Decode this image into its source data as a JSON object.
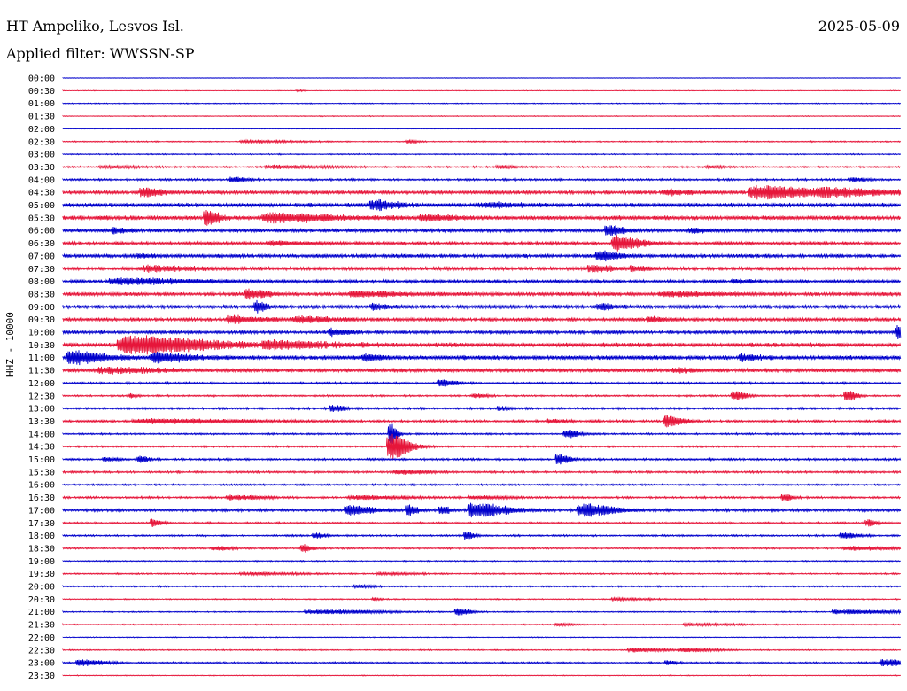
{
  "header": {
    "station": "HT Ampeliko, Lesvos Isl.",
    "date": "2025-05-09",
    "filter": "Applied filter: WWSSN-SP"
  },
  "channel_label": "HHZ - 10000",
  "colors": {
    "odd_trace": "#0000cc",
    "even_trace": "#e6163a",
    "text": "#000000"
  },
  "chart_data": {
    "type": "line",
    "title": "HT Ampeliko, Lesvos Isl.",
    "date": "2025-05-09",
    "filter": "WWSSN-SP",
    "ylabel": "HHZ - 10000",
    "row_interval_minutes": 30,
    "grid": false,
    "legend": "none",
    "rows": [
      {
        "time": "00:00",
        "activity": 0.1,
        "events": []
      },
      {
        "time": "00:30",
        "activity": 0.1,
        "events": [
          {
            "pos": 0.28,
            "amp": 0.2,
            "width": 0.004
          }
        ]
      },
      {
        "time": "01:00",
        "activity": 0.15,
        "events": []
      },
      {
        "time": "01:30",
        "activity": 0.15,
        "events": []
      },
      {
        "time": "02:00",
        "activity": 0.1,
        "events": []
      },
      {
        "time": "02:30",
        "activity": 0.2,
        "events": [
          {
            "pos": 0.22,
            "amp": 0.3,
            "width": 0.03
          },
          {
            "pos": 0.41,
            "amp": 0.5,
            "width": 0.006
          }
        ]
      },
      {
        "time": "03:00",
        "activity": 0.2,
        "events": []
      },
      {
        "time": "03:30",
        "activity": 0.3,
        "events": [
          {
            "pos": 0.05,
            "amp": 0.3,
            "width": 0.02
          },
          {
            "pos": 0.25,
            "amp": 0.5,
            "width": 0.03
          },
          {
            "pos": 0.52,
            "amp": 0.4,
            "width": 0.01
          },
          {
            "pos": 0.77,
            "amp": 0.3,
            "width": 0.01
          }
        ]
      },
      {
        "time": "04:00",
        "activity": 0.35,
        "events": [
          {
            "pos": 0.2,
            "amp": 0.8,
            "width": 0.008
          },
          {
            "pos": 0.94,
            "amp": 0.5,
            "width": 0.01
          }
        ]
      },
      {
        "time": "04:30",
        "activity": 0.6,
        "events": [
          {
            "pos": 0.095,
            "amp": 1.3,
            "width": 0.012
          },
          {
            "pos": 0.72,
            "amp": 0.7,
            "width": 0.015
          },
          {
            "pos": 0.83,
            "amp": 1.8,
            "width": 0.04
          },
          {
            "pos": 0.92,
            "amp": 0.6,
            "width": 0.06
          }
        ]
      },
      {
        "time": "05:00",
        "activity": 0.75,
        "events": [
          {
            "pos": 0.37,
            "amp": 1.2,
            "width": 0.015
          },
          {
            "pos": 0.5,
            "amp": 0.6,
            "width": 0.02
          }
        ]
      },
      {
        "time": "05:30",
        "activity": 0.75,
        "events": [
          {
            "pos": 0.17,
            "amp": 2.4,
            "width": 0.008
          },
          {
            "pos": 0.25,
            "amp": 1.2,
            "width": 0.04
          },
          {
            "pos": 0.43,
            "amp": 0.7,
            "width": 0.02
          }
        ]
      },
      {
        "time": "06:00",
        "activity": 0.6,
        "events": [
          {
            "pos": 0.06,
            "amp": 0.8,
            "width": 0.008
          },
          {
            "pos": 0.65,
            "amp": 1.5,
            "width": 0.01
          },
          {
            "pos": 0.75,
            "amp": 0.7,
            "width": 0.01
          }
        ]
      },
      {
        "time": "06:30",
        "activity": 0.55,
        "events": [
          {
            "pos": 0.25,
            "amp": 0.6,
            "width": 0.02
          },
          {
            "pos": 0.66,
            "amp": 2.2,
            "width": 0.015
          }
        ]
      },
      {
        "time": "07:00",
        "activity": 0.6,
        "events": [
          {
            "pos": 0.09,
            "amp": 0.5,
            "width": 0.008
          },
          {
            "pos": 0.64,
            "amp": 1.3,
            "width": 0.012
          }
        ]
      },
      {
        "time": "07:30",
        "activity": 0.6,
        "events": [
          {
            "pos": 0.1,
            "amp": 0.7,
            "width": 0.03
          },
          {
            "pos": 0.63,
            "amp": 0.8,
            "width": 0.015
          },
          {
            "pos": 0.68,
            "amp": 0.6,
            "width": 0.01
          }
        ]
      },
      {
        "time": "08:00",
        "activity": 0.55,
        "events": [
          {
            "pos": 0.07,
            "amp": 0.8,
            "width": 0.05
          },
          {
            "pos": 0.8,
            "amp": 0.5,
            "width": 0.01
          }
        ]
      },
      {
        "time": "08:30",
        "activity": 0.65,
        "events": [
          {
            "pos": 0.22,
            "amp": 1.3,
            "width": 0.012
          },
          {
            "pos": 0.35,
            "amp": 0.7,
            "width": 0.03
          },
          {
            "pos": 0.72,
            "amp": 0.6,
            "width": 0.03
          }
        ]
      },
      {
        "time": "09:00",
        "activity": 0.6,
        "events": [
          {
            "pos": 0.23,
            "amp": 1.6,
            "width": 0.006
          },
          {
            "pos": 0.37,
            "amp": 0.7,
            "width": 0.01
          },
          {
            "pos": 0.64,
            "amp": 0.8,
            "width": 0.01
          }
        ]
      },
      {
        "time": "09:30",
        "activity": 0.6,
        "events": [
          {
            "pos": 0.2,
            "amp": 0.9,
            "width": 0.02
          },
          {
            "pos": 0.28,
            "amp": 0.8,
            "width": 0.02
          },
          {
            "pos": 0.7,
            "amp": 0.7,
            "width": 0.01
          }
        ]
      },
      {
        "time": "10:00",
        "activity": 0.55,
        "events": [
          {
            "pos": 0.32,
            "amp": 0.9,
            "width": 0.01
          },
          {
            "pos": 0.995,
            "amp": 2.0,
            "width": 0.004
          }
        ]
      },
      {
        "time": "10:30",
        "activity": 0.8,
        "events": [
          {
            "pos": 0.08,
            "amp": 2.4,
            "width": 0.05
          },
          {
            "pos": 0.25,
            "amp": 0.8,
            "width": 0.04
          }
        ]
      },
      {
        "time": "11:00",
        "activity": 0.75,
        "events": [
          {
            "pos": 0.01,
            "amp": 1.8,
            "width": 0.02
          },
          {
            "pos": 0.11,
            "amp": 1.3,
            "width": 0.02
          },
          {
            "pos": 0.36,
            "amp": 0.8,
            "width": 0.01
          },
          {
            "pos": 0.81,
            "amp": 0.8,
            "width": 0.01
          }
        ]
      },
      {
        "time": "11:30",
        "activity": 0.7,
        "events": [
          {
            "pos": 0.05,
            "amp": 0.7,
            "width": 0.03
          },
          {
            "pos": 0.73,
            "amp": 0.6,
            "width": 0.01
          }
        ]
      },
      {
        "time": "12:00",
        "activity": 0.35,
        "events": [
          {
            "pos": 0.45,
            "amp": 1.0,
            "width": 0.01
          }
        ]
      },
      {
        "time": "12:30",
        "activity": 0.3,
        "events": [
          {
            "pos": 0.08,
            "amp": 0.6,
            "width": 0.004
          },
          {
            "pos": 0.49,
            "amp": 0.5,
            "width": 0.008
          },
          {
            "pos": 0.8,
            "amp": 1.4,
            "width": 0.008
          },
          {
            "pos": 0.935,
            "amp": 1.6,
            "width": 0.006
          }
        ]
      },
      {
        "time": "13:00",
        "activity": 0.35,
        "events": [
          {
            "pos": 0.32,
            "amp": 1.0,
            "width": 0.008
          },
          {
            "pos": 0.52,
            "amp": 0.5,
            "width": 0.006
          }
        ]
      },
      {
        "time": "13:30",
        "activity": 0.4,
        "events": [
          {
            "pos": 0.1,
            "amp": 0.6,
            "width": 0.06
          },
          {
            "pos": 0.58,
            "amp": 0.5,
            "width": 0.01
          },
          {
            "pos": 0.72,
            "amp": 1.8,
            "width": 0.01
          }
        ]
      },
      {
        "time": "14:00",
        "activity": 0.3,
        "events": [
          {
            "pos": 0.39,
            "amp": 3.5,
            "width": 0.004
          },
          {
            "pos": 0.6,
            "amp": 1.2,
            "width": 0.008
          }
        ]
      },
      {
        "time": "14:30",
        "activity": 0.3,
        "events": [
          {
            "pos": 0.39,
            "amp": 3.8,
            "width": 0.012
          }
        ]
      },
      {
        "time": "15:00",
        "activity": 0.35,
        "events": [
          {
            "pos": 0.05,
            "amp": 0.5,
            "width": 0.01
          },
          {
            "pos": 0.09,
            "amp": 1.1,
            "width": 0.006
          },
          {
            "pos": 0.59,
            "amp": 1.4,
            "width": 0.008
          }
        ]
      },
      {
        "time": "15:30",
        "activity": 0.35,
        "events": [
          {
            "pos": 0.4,
            "amp": 0.5,
            "width": 0.02
          }
        ]
      },
      {
        "time": "16:00",
        "activity": 0.3,
        "events": []
      },
      {
        "time": "16:30",
        "activity": 0.35,
        "events": [
          {
            "pos": 0.2,
            "amp": 0.6,
            "width": 0.02
          },
          {
            "pos": 0.35,
            "amp": 0.5,
            "width": 0.03
          },
          {
            "pos": 0.49,
            "amp": 0.4,
            "width": 0.02
          },
          {
            "pos": 0.86,
            "amp": 1.0,
            "width": 0.006
          }
        ]
      },
      {
        "time": "17:00",
        "activity": 0.45,
        "events": [
          {
            "pos": 0.34,
            "amp": 1.5,
            "width": 0.015
          },
          {
            "pos": 0.41,
            "amp": 1.7,
            "width": 0.006
          },
          {
            "pos": 0.45,
            "amp": 1.3,
            "width": 0.006
          },
          {
            "pos": 0.49,
            "amp": 2.2,
            "width": 0.02
          },
          {
            "pos": 0.62,
            "amp": 1.8,
            "width": 0.02
          }
        ]
      },
      {
        "time": "17:30",
        "activity": 0.3,
        "events": [
          {
            "pos": 0.105,
            "amp": 1.2,
            "width": 0.006
          },
          {
            "pos": 0.96,
            "amp": 0.9,
            "width": 0.006
          }
        ]
      },
      {
        "time": "18:00",
        "activity": 0.3,
        "events": [
          {
            "pos": 0.3,
            "amp": 0.8,
            "width": 0.006
          },
          {
            "pos": 0.48,
            "amp": 1.2,
            "width": 0.006
          },
          {
            "pos": 0.93,
            "amp": 0.8,
            "width": 0.01
          }
        ]
      },
      {
        "time": "18:30",
        "activity": 0.3,
        "events": [
          {
            "pos": 0.18,
            "amp": 0.6,
            "width": 0.01
          },
          {
            "pos": 0.285,
            "amp": 1.4,
            "width": 0.006
          },
          {
            "pos": 0.94,
            "amp": 0.5,
            "width": 0.03
          }
        ]
      },
      {
        "time": "19:00",
        "activity": 0.2,
        "events": []
      },
      {
        "time": "19:30",
        "activity": 0.25,
        "events": [
          {
            "pos": 0.22,
            "amp": 0.3,
            "width": 0.03
          },
          {
            "pos": 0.38,
            "amp": 0.3,
            "width": 0.02
          }
        ]
      },
      {
        "time": "20:00",
        "activity": 0.25,
        "events": [
          {
            "pos": 0.35,
            "amp": 0.4,
            "width": 0.01
          }
        ]
      },
      {
        "time": "20:30",
        "activity": 0.2,
        "events": [
          {
            "pos": 0.37,
            "amp": 0.5,
            "width": 0.004
          },
          {
            "pos": 0.66,
            "amp": 0.3,
            "width": 0.02
          }
        ]
      },
      {
        "time": "21:00",
        "activity": 0.2,
        "events": [
          {
            "pos": 0.3,
            "amp": 0.6,
            "width": 0.04
          },
          {
            "pos": 0.47,
            "amp": 1.0,
            "width": 0.008
          },
          {
            "pos": 0.93,
            "amp": 0.6,
            "width": 0.04
          }
        ]
      },
      {
        "time": "21:30",
        "activity": 0.2,
        "events": [
          {
            "pos": 0.59,
            "amp": 0.4,
            "width": 0.01
          },
          {
            "pos": 0.75,
            "amp": 0.3,
            "width": 0.03
          }
        ]
      },
      {
        "time": "22:00",
        "activity": 0.15,
        "events": []
      },
      {
        "time": "22:30",
        "activity": 0.2,
        "events": [
          {
            "pos": 0.68,
            "amp": 0.6,
            "width": 0.02
          },
          {
            "pos": 0.74,
            "amp": 0.5,
            "width": 0.02
          }
        ]
      },
      {
        "time": "23:00",
        "activity": 0.3,
        "events": [
          {
            "pos": 0.02,
            "amp": 0.9,
            "width": 0.015
          },
          {
            "pos": 0.72,
            "amp": 0.6,
            "width": 0.006
          },
          {
            "pos": 0.98,
            "amp": 1.0,
            "width": 0.015
          }
        ]
      },
      {
        "time": "23:30",
        "activity": 0.15,
        "events": []
      }
    ]
  }
}
